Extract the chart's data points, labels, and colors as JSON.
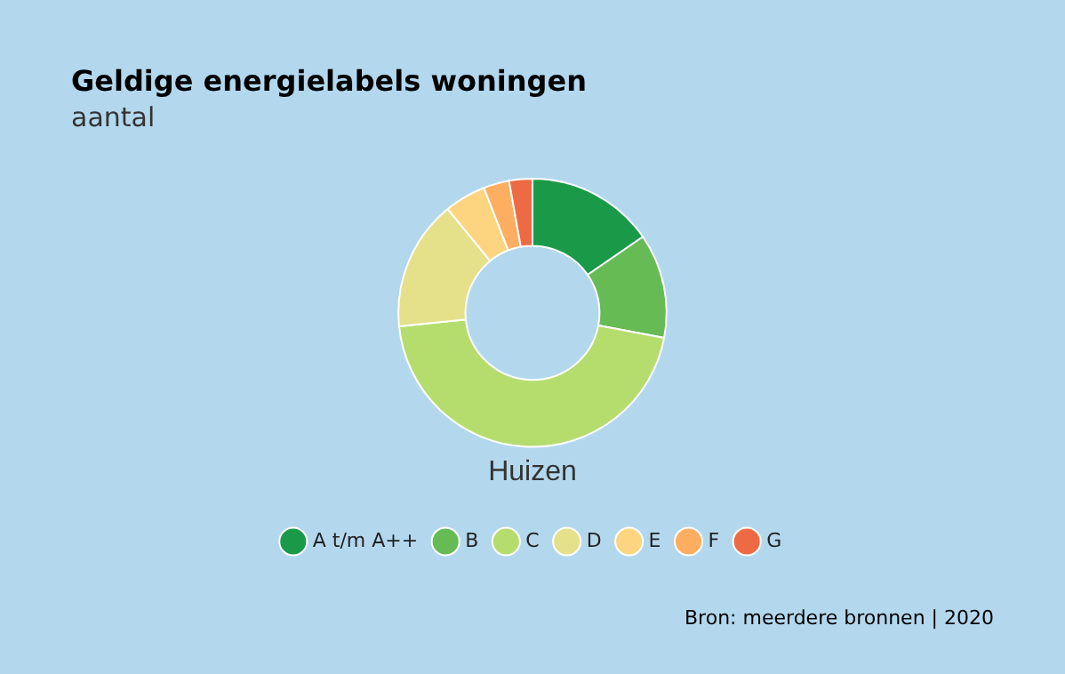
{
  "chart_data": {
    "type": "donut",
    "title": "Geldige energielabels woningen",
    "subtitle": "aantal",
    "xlabel": "Huizen",
    "categories": [
      "A t/m A++",
      "B",
      "C",
      "D",
      "E",
      "F",
      "G"
    ],
    "values": [
      15.4,
      12.6,
      45.4,
      15.7,
      5.0,
      3.1,
      2.8
    ],
    "colors": [
      "#1a9a48",
      "#66bb55",
      "#b5dd6e",
      "#e5e08a",
      "#fdd580",
      "#fdae61",
      "#ee6a45"
    ],
    "legend": "bottom",
    "annotations": [
      "Bron: meerdere bronnen | 2020"
    ]
  }
}
